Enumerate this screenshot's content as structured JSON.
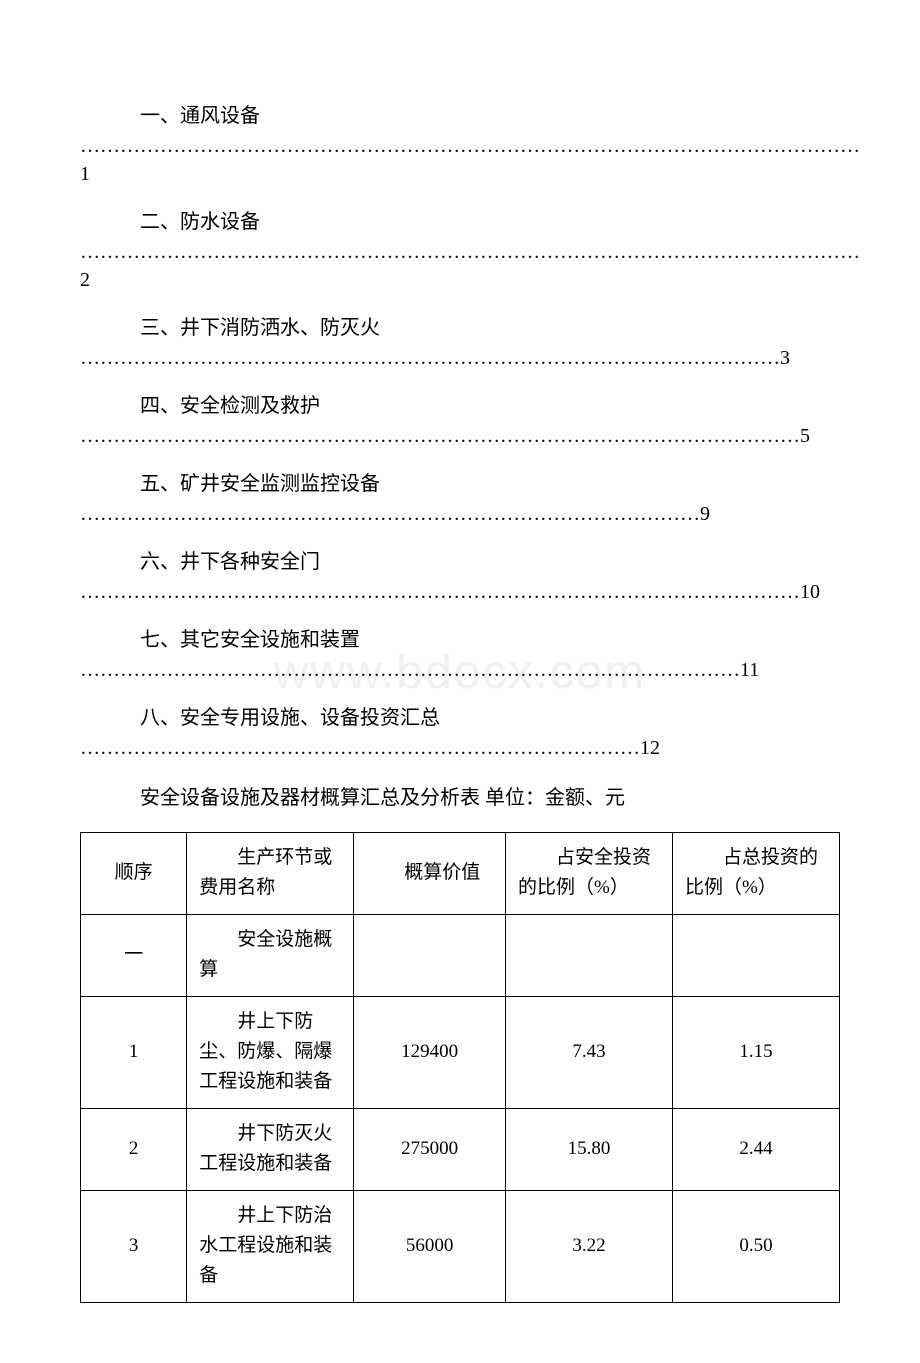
{
  "watermark": "www.bdocx.com",
  "toc": [
    {
      "title": "一、通风设备",
      "dots": "………………………………………………………………………………………………………1",
      "split": true
    },
    {
      "title": "二、防水设备",
      "dots": "………………………………………………………………………………………………………2",
      "split": true
    },
    {
      "title": "三、井下消防洒水、防灭火",
      "dots": "……………………………………………………………………………………………3",
      "split": false
    },
    {
      "title": "四、安全检测及救护",
      "dots": "………………………………………………………………………………………………5",
      "split": false
    },
    {
      "title": "五、矿井安全监测监控设备",
      "dots": "…………………………………………………………………………………9",
      "split": false
    },
    {
      "title": "六、井下各种安全门",
      "dots": "………………………………………………………………………………………………10",
      "split": true
    },
    {
      "title": "七、其它安全设施和装置",
      "dots": "………………………………………………………………………………………11",
      "split": false
    },
    {
      "title": "八、安全专用设施、设备投资汇总",
      "dots": "…………………………………………………………………………12",
      "split": false
    }
  ],
  "table_caption": "安全设备设施及器材概算汇总及分析表 单位：金额、元",
  "table": {
    "headers": {
      "seq": "顺序",
      "name": "生产环节或费用名称",
      "value": "概算价值",
      "safety_pct": "占安全投资的比例（%）",
      "total_pct": "占总投资的比例（%）"
    },
    "rows": [
      {
        "seq": "一",
        "name": "安全设施概算",
        "value": "",
        "safety_pct": "",
        "total_pct": ""
      },
      {
        "seq": "1",
        "name": "井上下防尘、防爆、隔爆工程设施和装备",
        "value": "129400",
        "safety_pct": "7.43",
        "total_pct": "1.15"
      },
      {
        "seq": "2",
        "name": "井下防灭火工程设施和装备",
        "value": "275000",
        "safety_pct": "15.80",
        "total_pct": "2.44"
      },
      {
        "seq": "3",
        "name": "井上下防治水工程设施和装备",
        "value": "56000",
        "safety_pct": "3.22",
        "total_pct": "0.50"
      }
    ]
  },
  "colors": {
    "text": "#000000",
    "background": "#ffffff",
    "border": "#000000",
    "watermark": "#f0f0f0"
  },
  "typography": {
    "body_fontsize": 20,
    "table_fontsize": 19,
    "watermark_fontsize": 48,
    "font_family": "SimSun"
  }
}
